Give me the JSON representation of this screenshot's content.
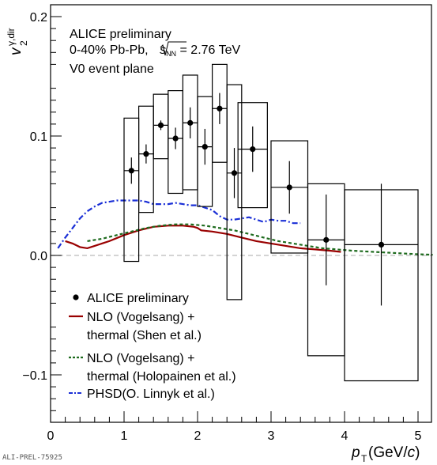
{
  "chart_data": {
    "type": "scatter",
    "y_label_main": "v",
    "y_label_sub": "2",
    "y_label_sup": "γ,dir",
    "x_label_main": "p",
    "x_label_sub": "T",
    "x_label_unit_open": " (GeV/",
    "x_label_unit_c": "c",
    "x_label_unit_close": ")",
    "xlim": [
      0,
      5.2
    ],
    "ylim": [
      -0.14,
      0.205
    ],
    "x_ticks": [
      {
        "value": 0,
        "label": "0"
      },
      {
        "value": 1,
        "label": "1"
      },
      {
        "value": 2,
        "label": "2"
      },
      {
        "value": 3,
        "label": "3"
      },
      {
        "value": 4,
        "label": "4"
      },
      {
        "value": 5,
        "label": "5"
      }
    ],
    "y_ticks": [
      {
        "value": -0.1,
        "label": "−0.1"
      },
      {
        "value": 0.0,
        "label": "0.0"
      },
      {
        "value": 0.1,
        "label": "0.1"
      },
      {
        "value": 0.2,
        "label": "0.2"
      }
    ],
    "annotations": {
      "line1": "ALICE preliminary",
      "line2_prefix": "0-40% Pb-Pb, ",
      "sqrt_s": "s",
      "sqrt_sub": "NN",
      "line2_suffix": " = 2.76 TeV",
      "line3": "V0 event plane"
    },
    "zero_line_color": "#bbbbbb",
    "series": [
      {
        "name": "ALICE preliminary",
        "kind": "points",
        "color": "#000000",
        "points": [
          {
            "x": 1.1,
            "y": 0.071,
            "stat": 0.011,
            "sys_lo": -0.005,
            "sys_hi": 0.115,
            "xw": 0.1
          },
          {
            "x": 1.3,
            "y": 0.085,
            "stat": 0.008,
            "sys_lo": 0.036,
            "sys_hi": 0.125,
            "xw": 0.1
          },
          {
            "x": 1.5,
            "y": 0.109,
            "stat": 0.004,
            "sys_lo": 0.081,
            "sys_hi": 0.135,
            "xw": 0.1
          },
          {
            "x": 1.7,
            "y": 0.098,
            "stat": 0.009,
            "sys_lo": 0.052,
            "sys_hi": 0.138,
            "xw": 0.1
          },
          {
            "x": 1.9,
            "y": 0.111,
            "stat": 0.013,
            "sys_lo": 0.055,
            "sys_hi": 0.151,
            "xw": 0.1
          },
          {
            "x": 2.1,
            "y": 0.091,
            "stat": 0.015,
            "sys_lo": 0.041,
            "sys_hi": 0.133,
            "xw": 0.1
          },
          {
            "x": 2.3,
            "y": 0.123,
            "stat": 0.013,
            "sys_lo": 0.078,
            "sys_hi": 0.16,
            "xw": 0.1
          },
          {
            "x": 2.5,
            "y": 0.069,
            "stat": 0.021,
            "sys_lo": -0.037,
            "sys_hi": 0.143,
            "xw": 0.1
          },
          {
            "x": 2.75,
            "y": 0.089,
            "stat": 0.019,
            "sys_lo": 0.04,
            "sys_hi": 0.128,
            "xw": 0.2
          },
          {
            "x": 3.25,
            "y": 0.057,
            "stat": 0.022,
            "sys_lo": 0.002,
            "sys_hi": 0.096,
            "xw": 0.25
          },
          {
            "x": 3.75,
            "y": 0.013,
            "stat": 0.038,
            "sys_lo": -0.084,
            "sys_hi": 0.06,
            "xw": 0.25
          },
          {
            "x": 4.5,
            "y": 0.009,
            "stat": 0.051,
            "sys_lo": -0.105,
            "sys_hi": 0.055,
            "xw": 0.5
          }
        ]
      },
      {
        "name": "NLO (Vogelsang) + thermal (Shen et al.)",
        "legend_line1": "NLO (Vogelsang) +",
        "legend_line2": "thermal (Shen et al.)",
        "kind": "line",
        "color": "#990000",
        "dash": "",
        "points": [
          [
            0.2,
            0.012
          ],
          [
            0.3,
            0.01
          ],
          [
            0.4,
            0.007
          ],
          [
            0.5,
            0.006
          ],
          [
            0.6,
            0.008
          ],
          [
            0.8,
            0.012
          ],
          [
            1.0,
            0.017
          ],
          [
            1.2,
            0.021
          ],
          [
            1.4,
            0.024
          ],
          [
            1.6,
            0.025
          ],
          [
            1.8,
            0.025
          ],
          [
            1.95,
            0.024
          ],
          [
            2.0,
            0.023
          ],
          [
            2.05,
            0.021
          ],
          [
            2.2,
            0.02
          ],
          [
            2.4,
            0.018
          ],
          [
            2.6,
            0.015
          ],
          [
            2.8,
            0.012
          ],
          [
            3.0,
            0.01
          ],
          [
            3.2,
            0.008
          ],
          [
            3.4,
            0.006
          ],
          [
            3.6,
            0.005
          ],
          [
            3.8,
            0.004
          ],
          [
            3.95,
            0.003
          ]
        ]
      },
      {
        "name": "NLO (Vogelsang) + thermal (Holopainen et al.)",
        "legend_line1": "NLO (Vogelsang) +",
        "legend_line2": "thermal (Holopainen et al.)",
        "kind": "line",
        "color": "#1e6b1e",
        "dash": "4,3",
        "points": [
          [
            0.5,
            0.012
          ],
          [
            0.7,
            0.014
          ],
          [
            0.9,
            0.017
          ],
          [
            1.1,
            0.02
          ],
          [
            1.3,
            0.023
          ],
          [
            1.5,
            0.025
          ],
          [
            1.7,
            0.026
          ],
          [
            1.9,
            0.026
          ],
          [
            2.1,
            0.025
          ],
          [
            2.3,
            0.023
          ],
          [
            2.5,
            0.021
          ],
          [
            2.7,
            0.018
          ],
          [
            2.9,
            0.015
          ],
          [
            3.1,
            0.012
          ],
          [
            3.3,
            0.01
          ],
          [
            3.5,
            0.008
          ],
          [
            3.7,
            0.006
          ],
          [
            3.9,
            0.005
          ],
          [
            4.1,
            0.004
          ],
          [
            4.4,
            0.003
          ],
          [
            4.7,
            0.002
          ],
          [
            5.0,
            0.001
          ],
          [
            5.2,
            0.0005
          ]
        ]
      },
      {
        "name": "PHSD(O. Linnyk et al.)",
        "kind": "line",
        "color": "#1a2fd6",
        "dash": "7,3,2,3",
        "points": [
          [
            0.1,
            0.006
          ],
          [
            0.2,
            0.015
          ],
          [
            0.3,
            0.023
          ],
          [
            0.4,
            0.031
          ],
          [
            0.5,
            0.037
          ],
          [
            0.6,
            0.041
          ],
          [
            0.7,
            0.044
          ],
          [
            0.8,
            0.045
          ],
          [
            0.9,
            0.046
          ],
          [
            1.0,
            0.046
          ],
          [
            1.1,
            0.046
          ],
          [
            1.2,
            0.046
          ],
          [
            1.3,
            0.045
          ],
          [
            1.4,
            0.043
          ],
          [
            1.5,
            0.043
          ],
          [
            1.6,
            0.043
          ],
          [
            1.7,
            0.044
          ],
          [
            1.8,
            0.043
          ],
          [
            1.9,
            0.042
          ],
          [
            2.0,
            0.042
          ],
          [
            2.1,
            0.04
          ],
          [
            2.2,
            0.038
          ],
          [
            2.3,
            0.033
          ],
          [
            2.4,
            0.03
          ],
          [
            2.5,
            0.03
          ],
          [
            2.6,
            0.031
          ],
          [
            2.7,
            0.032
          ],
          [
            2.8,
            0.03
          ],
          [
            2.9,
            0.028
          ],
          [
            3.0,
            0.03
          ],
          [
            3.1,
            0.029
          ],
          [
            3.2,
            0.029
          ],
          [
            3.3,
            0.027
          ],
          [
            3.4,
            0.027
          ]
        ]
      }
    ]
  },
  "watermark": "ALI-PREL-75925"
}
